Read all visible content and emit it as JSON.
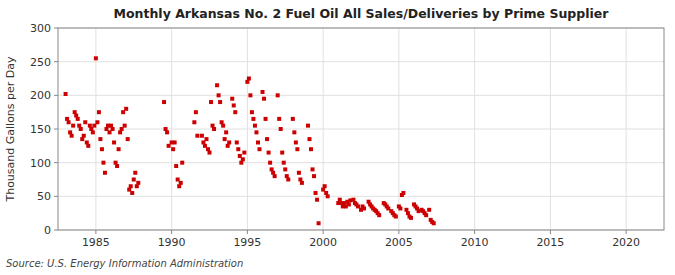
{
  "chart_data": {
    "type": "scatter",
    "title": "Monthly Arkansas No. 2 Fuel Oil All Sales/Deliveries by Prime Supplier",
    "ylabel": "Thousand Gallons per Day",
    "annotations": [
      "Source: U.S. Energy Information Administration"
    ],
    "color": "#cc0000",
    "marker": "square",
    "grid": true,
    "xlim": [
      1982.5,
      2022.5
    ],
    "ylim": [
      0,
      300
    ],
    "xticks": [
      1985,
      1990,
      1995,
      2000,
      2005,
      2010,
      2015,
      2020
    ],
    "yticks": [
      0,
      50,
      100,
      150,
      200,
      250,
      300
    ],
    "x": [
      1983.0,
      1983.1,
      1983.2,
      1983.3,
      1983.4,
      1983.5,
      1983.6,
      1983.7,
      1983.8,
      1983.9,
      1984.0,
      1984.1,
      1984.2,
      1984.3,
      1984.4,
      1984.5,
      1984.6,
      1984.7,
      1984.8,
      1984.9,
      1985.0,
      1985.1,
      1985.2,
      1985.3,
      1985.4,
      1985.5,
      1985.6,
      1985.7,
      1985.8,
      1985.9,
      1986.0,
      1986.1,
      1986.2,
      1986.3,
      1986.4,
      1986.5,
      1986.6,
      1986.7,
      1986.8,
      1986.9,
      1987.0,
      1987.1,
      1987.2,
      1987.3,
      1987.4,
      1987.5,
      1987.6,
      1987.7,
      1987.8,
      1989.5,
      1989.6,
      1989.7,
      1989.8,
      1990.0,
      1990.1,
      1990.2,
      1990.3,
      1990.4,
      1990.5,
      1990.6,
      1990.7,
      1991.5,
      1991.6,
      1991.7,
      1992.0,
      1992.1,
      1992.2,
      1992.3,
      1992.4,
      1992.5,
      1992.6,
      1992.7,
      1992.8,
      1993.0,
      1993.1,
      1993.2,
      1993.3,
      1993.4,
      1993.5,
      1993.6,
      1993.7,
      1993.8,
      1994.0,
      1994.1,
      1994.2,
      1994.3,
      1994.4,
      1994.5,
      1994.6,
      1994.7,
      1994.8,
      1995.0,
      1995.1,
      1995.2,
      1995.3,
      1995.4,
      1995.5,
      1995.6,
      1995.7,
      1995.8,
      1996.0,
      1996.1,
      1996.2,
      1996.3,
      1996.4,
      1996.5,
      1996.6,
      1996.7,
      1996.8,
      1997.0,
      1997.1,
      1997.2,
      1997.3,
      1997.4,
      1997.5,
      1997.6,
      1997.7,
      1998.0,
      1998.1,
      1998.2,
      1998.3,
      1998.4,
      1998.5,
      1998.6,
      1999.0,
      1999.1,
      1999.2,
      1999.3,
      1999.4,
      1999.5,
      1999.6,
      1999.7,
      2000.0,
      2000.1,
      2000.2,
      2000.3,
      2001.0,
      2001.1,
      2001.2,
      2001.3,
      2001.4,
      2001.5,
      2001.6,
      2001.7,
      2001.8,
      2002.0,
      2002.1,
      2002.2,
      2002.3,
      2002.5,
      2002.6,
      2002.7,
      2003.0,
      2003.1,
      2003.2,
      2003.3,
      2003.4,
      2003.5,
      2003.6,
      2003.7,
      2004.0,
      2004.1,
      2004.2,
      2004.3,
      2004.5,
      2004.6,
      2004.7,
      2004.8,
      2005.0,
      2005.1,
      2005.2,
      2005.3,
      2005.5,
      2005.6,
      2005.7,
      2005.8,
      2006.0,
      2006.1,
      2006.2,
      2006.3,
      2006.5,
      2006.6,
      2006.7,
      2006.8,
      2007.0,
      2007.1,
      2007.2,
      2007.3
    ],
    "values": [
      202,
      165,
      160,
      145,
      140,
      155,
      175,
      170,
      165,
      155,
      150,
      135,
      140,
      160,
      130,
      125,
      155,
      150,
      145,
      155,
      255,
      160,
      175,
      135,
      120,
      100,
      85,
      150,
      155,
      145,
      155,
      150,
      130,
      100,
      95,
      120,
      145,
      150,
      175,
      155,
      180,
      135,
      60,
      65,
      55,
      75,
      85,
      65,
      70,
      190,
      150,
      145,
      125,
      130,
      120,
      130,
      95,
      75,
      65,
      70,
      100,
      160,
      175,
      140,
      140,
      130,
      125,
      135,
      120,
      115,
      190,
      155,
      150,
      215,
      200,
      190,
      160,
      155,
      135,
      145,
      125,
      130,
      195,
      185,
      175,
      130,
      120,
      110,
      100,
      105,
      115,
      220,
      225,
      200,
      175,
      165,
      155,
      145,
      130,
      120,
      205,
      195,
      165,
      135,
      115,
      100,
      90,
      85,
      80,
      200,
      165,
      150,
      115,
      100,
      90,
      80,
      75,
      165,
      145,
      130,
      120,
      85,
      75,
      70,
      155,
      135,
      120,
      90,
      80,
      55,
      45,
      10,
      60,
      65,
      55,
      50,
      40,
      45,
      40,
      35,
      40,
      35,
      42,
      38,
      44,
      45,
      40,
      38,
      35,
      30,
      35,
      32,
      42,
      38,
      35,
      32,
      30,
      28,
      25,
      22,
      40,
      38,
      35,
      32,
      28,
      25,
      22,
      20,
      35,
      32,
      52,
      55,
      30,
      25,
      20,
      18,
      38,
      35,
      32,
      28,
      30,
      28,
      25,
      22,
      30,
      15,
      12,
      10
    ]
  }
}
